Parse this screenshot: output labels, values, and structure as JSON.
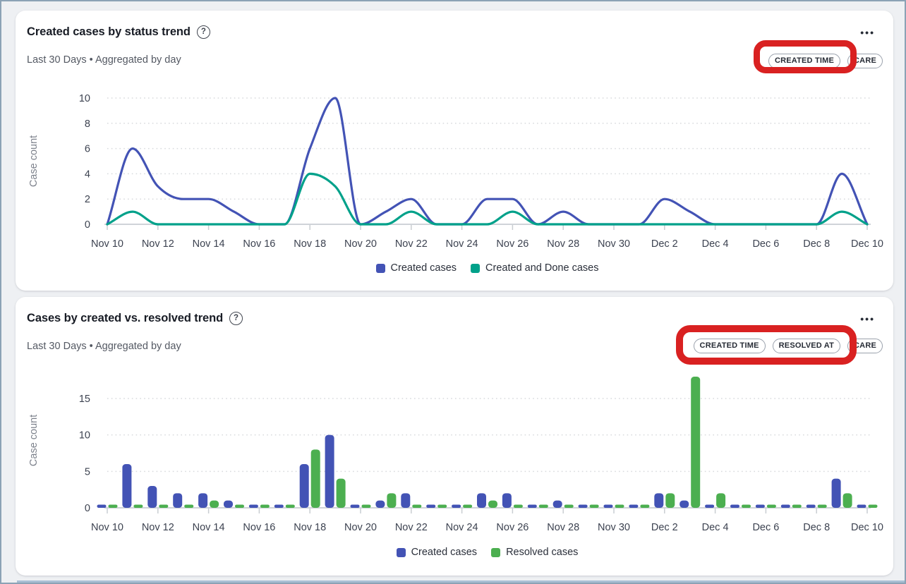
{
  "frame": {
    "border_color": "#8ba2b5",
    "background": "#eef0f3",
    "bottom_bar_color": "#a9bfd4"
  },
  "annotation_color": "#d92121",
  "icons": {
    "help_glyph": "?",
    "menu_glyph": "•••"
  },
  "cards": [
    {
      "title": "Created cases by status trend",
      "subtitle": "Last 30 Days • Aggregated by day",
      "chips": [
        "CREATED TIME",
        "CARE"
      ]
    },
    {
      "title": "Cases by created vs. resolved trend",
      "subtitle": "Last 30 Days • Aggregated by day",
      "chips": [
        "CREATED TIME",
        "RESOLVED AT",
        "CARE"
      ]
    }
  ],
  "chart_data": [
    {
      "type": "line",
      "title": "Created cases by status trend",
      "xlabel": "",
      "ylabel": "Case count",
      "grid": "dotted-horizontal",
      "legend_position": "bottom",
      "yticks": [
        0,
        2,
        4,
        6,
        8,
        10
      ],
      "ylim": [
        0,
        10
      ],
      "xtick_every": 2,
      "categories": [
        "Nov 10",
        "Nov 11",
        "Nov 12",
        "Nov 13",
        "Nov 14",
        "Nov 15",
        "Nov 16",
        "Nov 17",
        "Nov 18",
        "Nov 19",
        "Nov 20",
        "Nov 21",
        "Nov 22",
        "Nov 23",
        "Nov 24",
        "Nov 25",
        "Nov 26",
        "Nov 27",
        "Nov 28",
        "Nov 29",
        "Nov 30",
        "Dec 1",
        "Dec 2",
        "Dec 3",
        "Dec 4",
        "Dec 5",
        "Dec 6",
        "Dec 7",
        "Dec 8",
        "Dec 9",
        "Dec 10"
      ],
      "series": [
        {
          "name": "Created cases",
          "color": "#4353b5",
          "values": [
            0,
            6,
            3,
            2,
            2,
            1,
            0,
            0,
            6,
            10,
            0,
            1,
            2,
            0,
            0,
            2,
            2,
            0,
            1,
            0,
            0,
            0,
            2,
            1,
            0,
            0,
            0,
            0,
            0,
            4,
            0
          ]
        },
        {
          "name": "Created and Done cases",
          "color": "#00a18a",
          "values": [
            0,
            1,
            0,
            0,
            0,
            0,
            0,
            0,
            4,
            3,
            0,
            0,
            1,
            0,
            0,
            0,
            1,
            0,
            0,
            0,
            0,
            0,
            0,
            0,
            0,
            0,
            0,
            0,
            0,
            1,
            0
          ]
        }
      ]
    },
    {
      "type": "bar",
      "title": "Cases by created vs. resolved trend",
      "xlabel": "",
      "ylabel": "Case count",
      "grid": "dotted-horizontal",
      "legend_position": "bottom",
      "yticks": [
        0,
        5,
        10,
        15
      ],
      "ylim": [
        0,
        18.5
      ],
      "xtick_every": 2,
      "categories": [
        "Nov 10",
        "Nov 11",
        "Nov 12",
        "Nov 13",
        "Nov 14",
        "Nov 15",
        "Nov 16",
        "Nov 17",
        "Nov 18",
        "Nov 19",
        "Nov 20",
        "Nov 21",
        "Nov 22",
        "Nov 23",
        "Nov 24",
        "Nov 25",
        "Nov 26",
        "Nov 27",
        "Nov 28",
        "Nov 29",
        "Nov 30",
        "Dec 1",
        "Dec 2",
        "Dec 3",
        "Dec 4",
        "Dec 5",
        "Dec 6",
        "Dec 7",
        "Dec 8",
        "Dec 9",
        "Dec 10"
      ],
      "series": [
        {
          "name": "Created cases",
          "color": "#4353b5",
          "values": [
            0,
            6,
            3,
            2,
            2,
            1,
            0,
            0,
            6,
            10,
            0,
            1,
            2,
            0,
            0,
            2,
            2,
            0,
            1,
            0,
            0,
            0,
            2,
            1,
            0,
            0,
            0,
            0,
            0,
            4,
            0
          ]
        },
        {
          "name": "Resolved cases",
          "color": "#4caf50",
          "values": [
            0,
            0,
            0,
            0,
            1,
            0,
            0,
            0,
            8,
            4,
            0,
            2,
            0,
            0,
            0,
            1,
            0,
            0,
            0,
            0,
            0,
            0,
            2,
            18,
            2,
            0,
            0,
            0,
            0,
            2,
            0
          ]
        }
      ]
    }
  ]
}
